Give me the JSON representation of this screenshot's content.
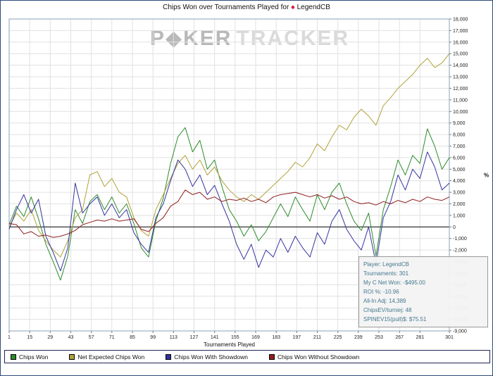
{
  "header": {
    "title": "Chips Won over Tournaments Played for",
    "player": "LegendCB",
    "icon_glyph": "♠"
  },
  "watermark": {
    "poker": "P◆KER",
    "tracker": "TRACKER"
  },
  "axes": {
    "right_axis_label": "%"
  },
  "info_box": {
    "lines": [
      "Player: LegendCB",
      "Tournaments: 301",
      "My C Net Won: -$495.00",
      "ROI %: -10.96",
      "All-In Adj: 14,389",
      "ChipsEV/turniej: 48",
      "SPINEV15(pull)$: $75.51"
    ]
  },
  "chart_data": {
    "type": "line",
    "title": "Chips Won over Tournaments Played for LegendCB",
    "xlabel": "Tournaments Played",
    "ylabel": "",
    "right_axis_label": "%",
    "ylim": [
      -9000,
      18000
    ],
    "y_step": 1000,
    "grid": true,
    "legend_position": "bottom",
    "xticks": [
      1,
      15,
      29,
      43,
      57,
      71,
      85,
      99,
      113,
      127,
      141,
      155,
      169,
      183,
      197,
      211,
      225,
      239,
      253,
      267,
      281,
      301
    ],
    "x": [
      1,
      6,
      11,
      16,
      21,
      26,
      31,
      36,
      41,
      46,
      51,
      56,
      61,
      66,
      71,
      76,
      81,
      86,
      91,
      96,
      101,
      106,
      111,
      116,
      121,
      126,
      131,
      136,
      141,
      146,
      151,
      156,
      161,
      166,
      171,
      176,
      181,
      186,
      191,
      196,
      201,
      206,
      211,
      216,
      221,
      226,
      231,
      236,
      241,
      246,
      251,
      256,
      261,
      266,
      271,
      276,
      281,
      286,
      291,
      296,
      301
    ],
    "series": [
      {
        "name": "Chips Won",
        "color": "#2e8b2e",
        "values": [
          200,
          1800,
          900,
          2600,
          700,
          -1500,
          -3000,
          -4600,
          -2500,
          1500,
          300,
          2200,
          2800,
          1500,
          2600,
          1200,
          2000,
          300,
          -1800,
          -2600,
          500,
          2500,
          5500,
          7800,
          8600,
          6500,
          7500,
          5000,
          5800,
          3500,
          1500,
          500,
          -800,
          200,
          -1200,
          -400,
          800,
          2000,
          900,
          2600,
          1500,
          500,
          2800,
          1500,
          3000,
          3800,
          2000,
          500,
          -300,
          1200,
          -2500,
          1500,
          3500,
          5800,
          4500,
          6200,
          5500,
          8500,
          7000,
          5000,
          6000
        ]
      },
      {
        "name": "Net Expected Chips Won",
        "color": "#b1a23a",
        "values": [
          0,
          1200,
          500,
          1500,
          -300,
          -1200,
          -2000,
          -2600,
          -1200,
          800,
          1500,
          4500,
          4800,
          3500,
          4200,
          3000,
          2600,
          800,
          -300,
          -800,
          1500,
          2800,
          4200,
          5500,
          6200,
          5000,
          5800,
          4500,
          5200,
          4000,
          3200,
          2600,
          2200,
          2800,
          2400,
          3000,
          3600,
          4200,
          4800,
          5600,
          5200,
          6000,
          7200,
          6600,
          7800,
          8800,
          8400,
          9500,
          10200,
          9600,
          8800,
          10500,
          11200,
          12000,
          12600,
          13200,
          14000,
          14600,
          13800,
          14200,
          15000
        ]
      },
      {
        "name": "Chips Won With Showdown",
        "color": "#3333a0",
        "values": [
          -200,
          1500,
          2800,
          1200,
          2400,
          -800,
          -2200,
          -3800,
          -1800,
          3800,
          1200,
          2000,
          2600,
          1000,
          2000,
          800,
          1500,
          -500,
          -1500,
          -2200,
          800,
          2000,
          4000,
          5800,
          5000,
          3500,
          4500,
          2800,
          3600,
          2000,
          500,
          -1500,
          -2800,
          -1500,
          -3500,
          -2000,
          -2600,
          -1000,
          -2200,
          -800,
          -1800,
          -2600,
          -500,
          -1500,
          500,
          1500,
          -200,
          -1200,
          -2000,
          0,
          -3200,
          800,
          2200,
          4500,
          3200,
          5000,
          4200,
          6500,
          5200,
          3200,
          3800
        ]
      },
      {
        "name": "Chips Won Without Showdown",
        "color": "#8f1f1f",
        "values": [
          300,
          200,
          -600,
          -400,
          -800,
          -700,
          -900,
          -800,
          -600,
          -300,
          200,
          400,
          600,
          500,
          700,
          500,
          600,
          700,
          -200,
          -400,
          300,
          800,
          1800,
          2200,
          3200,
          2800,
          3000,
          2400,
          2600,
          2200,
          2400,
          2300,
          2500,
          2200,
          2400,
          2100,
          2600,
          2800,
          2900,
          3000,
          2800,
          2600,
          2800,
          2500,
          2700,
          2400,
          2600,
          2200,
          2000,
          2100,
          1900,
          2200,
          2000,
          2300,
          2100,
          2400,
          2200,
          2600,
          2400,
          2300,
          2600
        ]
      }
    ]
  }
}
